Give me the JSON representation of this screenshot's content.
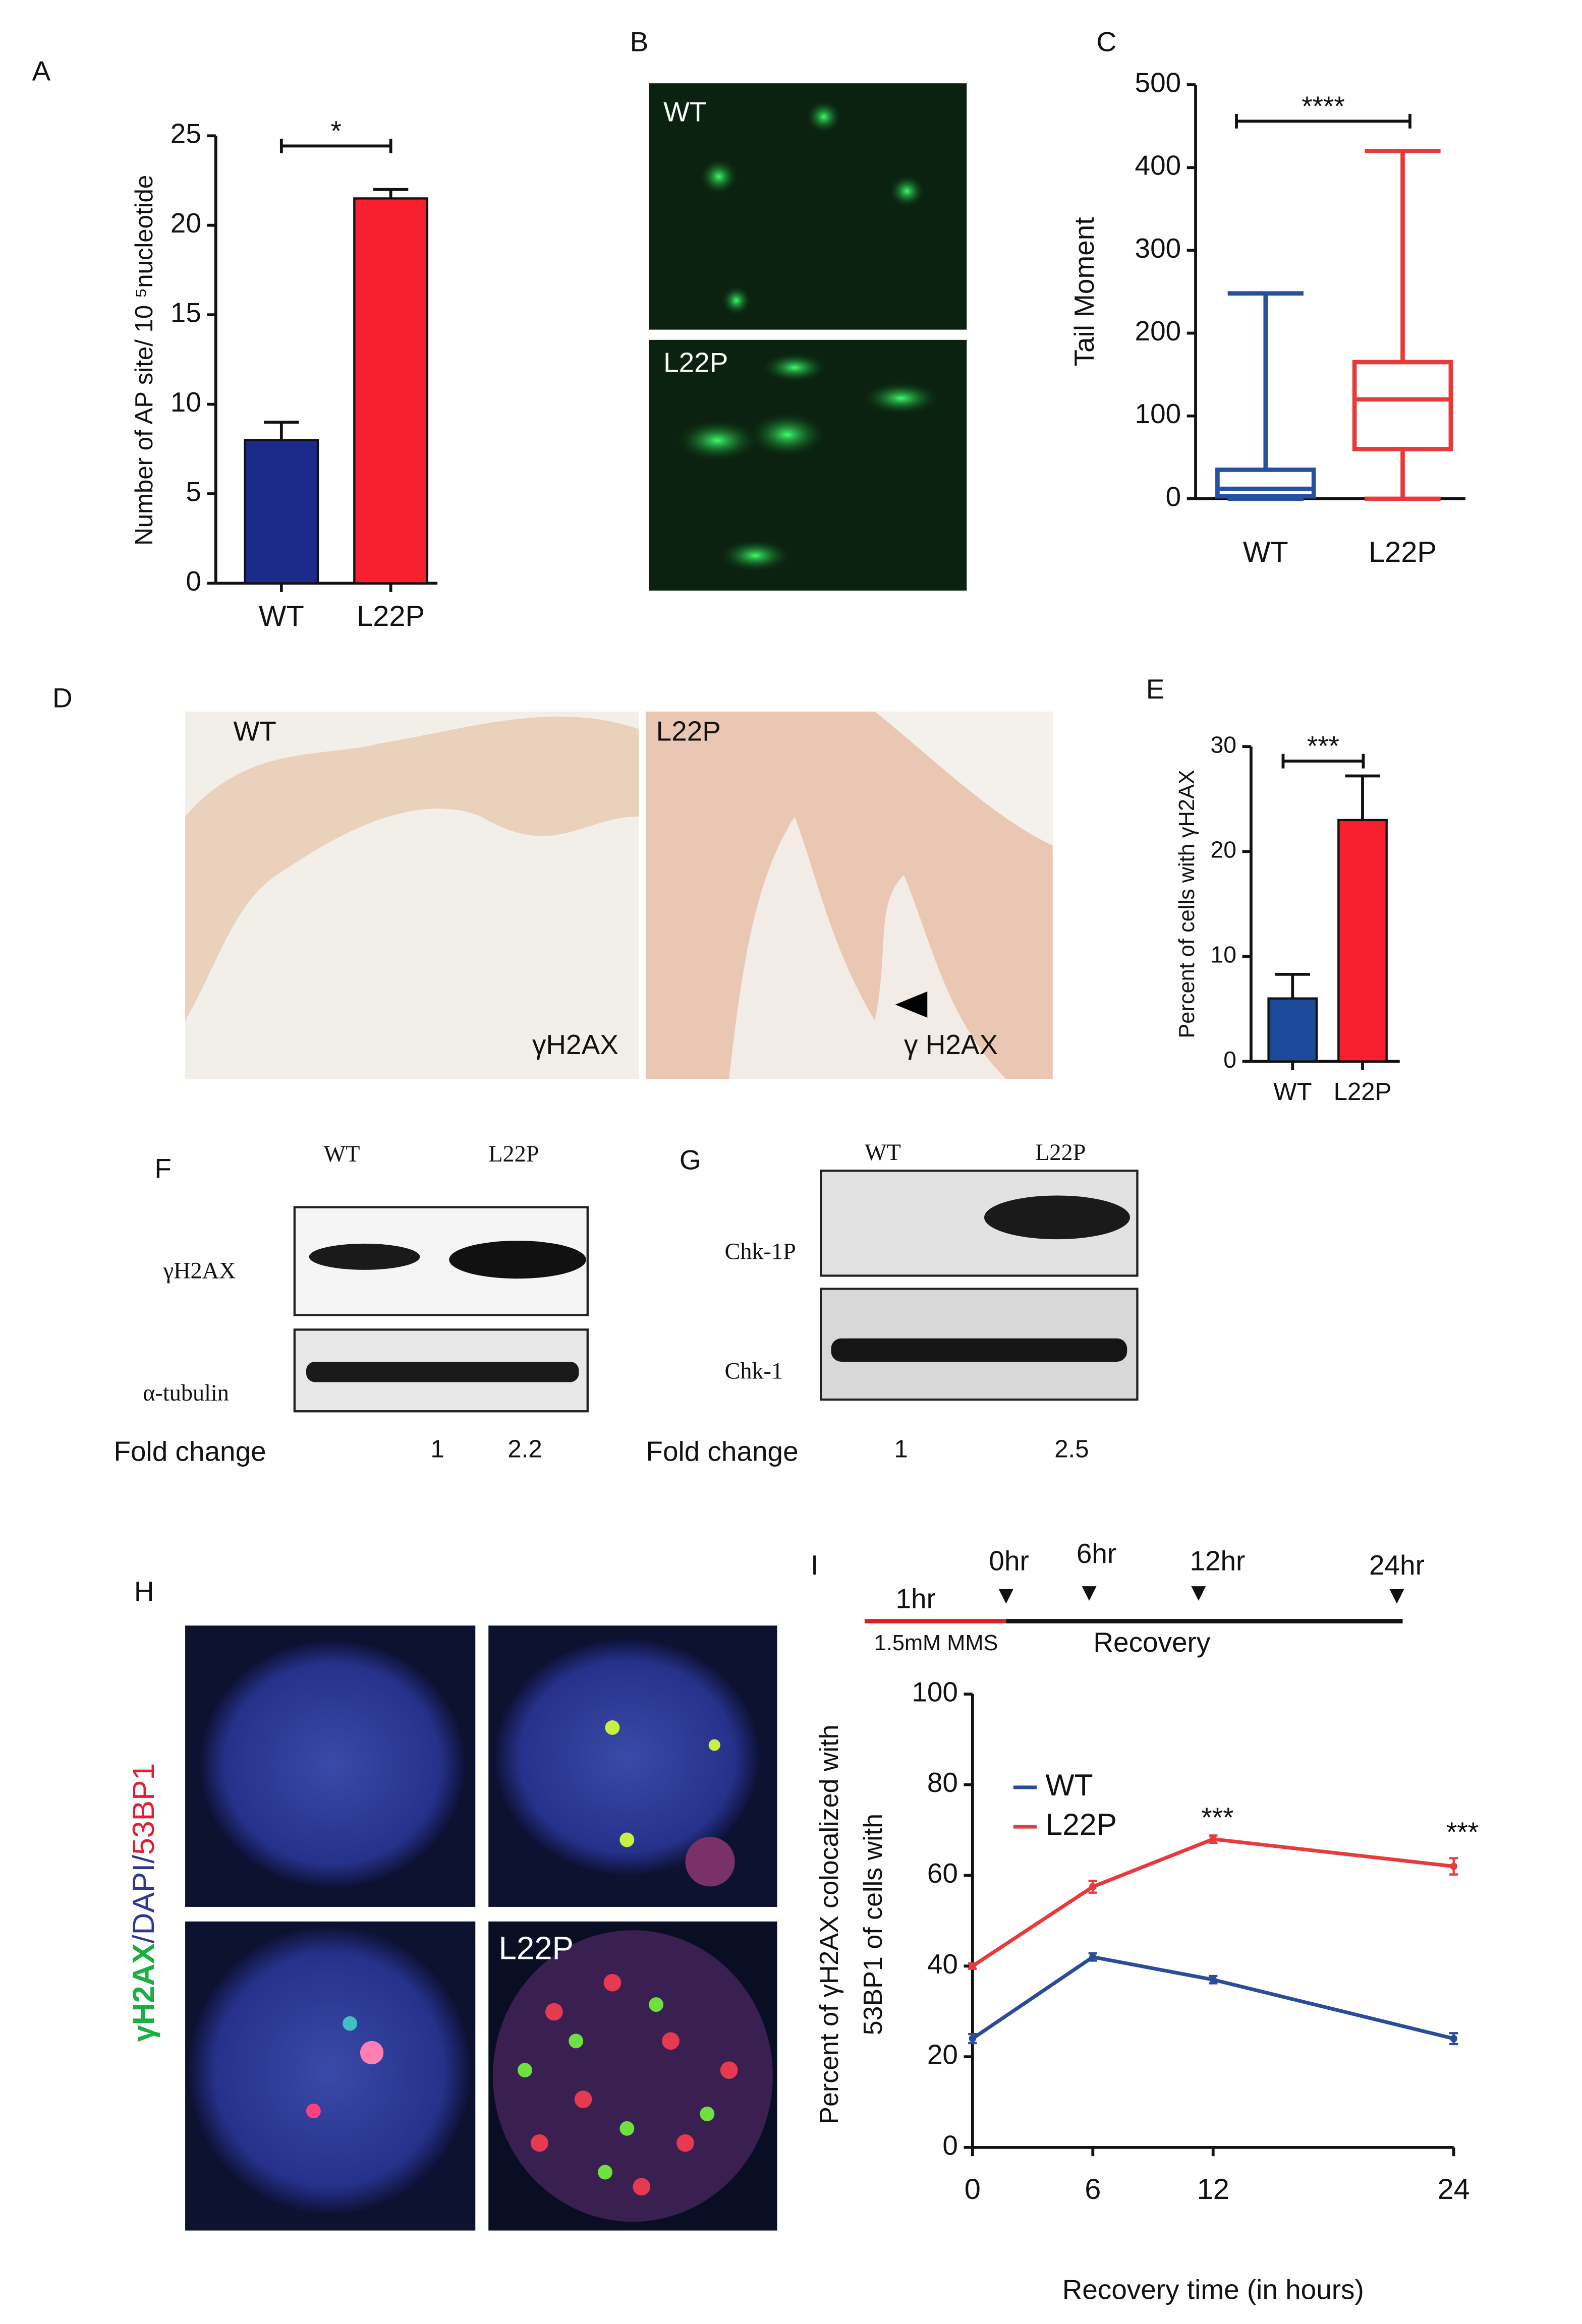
{
  "panel_labels": [
    "A",
    "B",
    "C",
    "D",
    "E",
    "F",
    "G",
    "H",
    "I"
  ],
  "chart_data": [
    {
      "type": "bar",
      "ylabel": "Number of AP site/ 10 ⁵nucleotide",
      "categories": [
        "WT",
        "L22P"
      ],
      "values": [
        8,
        21.5
      ],
      "errors": [
        1,
        0.5
      ],
      "colors": [
        "#1c2a8a",
        "#f8202e"
      ],
      "ylim": [
        0,
        25
      ],
      "yticks": [
        0,
        5,
        10,
        15,
        20,
        25
      ],
      "significance": "*"
    },
    {
      "type": "box",
      "ylabel": "Tail Moment",
      "categories": [
        "WT",
        "L22P"
      ],
      "min": [
        0,
        0
      ],
      "q1": [
        3,
        60
      ],
      "median": [
        12,
        120
      ],
      "q3": [
        35,
        165
      ],
      "max": [
        248,
        420
      ],
      "colors": [
        "#2552a0",
        "#e83a3a"
      ],
      "ylim": [
        0,
        500
      ],
      "yticks": [
        0,
        100,
        200,
        300,
        400,
        500
      ],
      "significance": "****"
    },
    {
      "type": "bar",
      "ylabel": "Percent of cells with γH2AX",
      "categories": [
        "WT",
        "L22P"
      ],
      "values": [
        6,
        23
      ],
      "errors": [
        2.3,
        4.2
      ],
      "colors": [
        "#1c4a9a",
        "#f8202e"
      ],
      "ylim": [
        0,
        30
      ],
      "yticks": [
        0,
        10,
        20,
        30
      ],
      "significance": "***"
    },
    {
      "type": "line",
      "xlabel": "Recovery time (in hours)",
      "ylabel": [
        "Percent of γH2AX colocalized with",
        "53BP1 of cells with"
      ],
      "x": [
        0,
        6,
        12,
        24
      ],
      "series": [
        {
          "name": "WT",
          "color": "#2a4d9a",
          "values": [
            24,
            42,
            37,
            24
          ],
          "errors": [
            1,
            0.8,
            0.8,
            1.2
          ]
        },
        {
          "name": "L22P",
          "color": "#e83a3a",
          "values": [
            40,
            57.5,
            68,
            62
          ],
          "errors": [
            0.6,
            1.3,
            0.8,
            1.8
          ]
        }
      ],
      "xlim": [
        0,
        24
      ],
      "xticks": [
        0,
        6,
        12,
        24
      ],
      "ylim": [
        0,
        100
      ],
      "yticks": [
        0,
        20,
        40,
        60,
        80,
        100
      ],
      "annotations": [
        "***",
        "***"
      ]
    }
  ],
  "panel_B": {
    "labels": [
      "WT",
      "L22P"
    ]
  },
  "panel_D": {
    "labels": [
      "WT",
      "L22P"
    ],
    "stains": [
      "γH2AX",
      "γ H2AX"
    ]
  },
  "panel_F": {
    "columns": [
      "WT",
      "L22P"
    ],
    "rows": [
      "γH2AX",
      "α-tubulin"
    ],
    "fold_label": "Fold change",
    "fold": [
      "1",
      "2.2"
    ]
  },
  "panel_G": {
    "columns": [
      "WT",
      "L22P"
    ],
    "rows": [
      "Chk-1P",
      "Chk-1"
    ],
    "fold_label": "Fold change",
    "fold": [
      "1",
      "2.5"
    ]
  },
  "panel_H": {
    "label_parts": [
      "γH2AX",
      "/DAPI/",
      "53BP1"
    ],
    "cell_label": "L22P"
  },
  "timeline": {
    "times": [
      "0hr",
      "6hr",
      "12hr",
      "24hr"
    ],
    "pre": "1hr",
    "treatment": "1.5mM MMS",
    "phase": "Recovery"
  }
}
